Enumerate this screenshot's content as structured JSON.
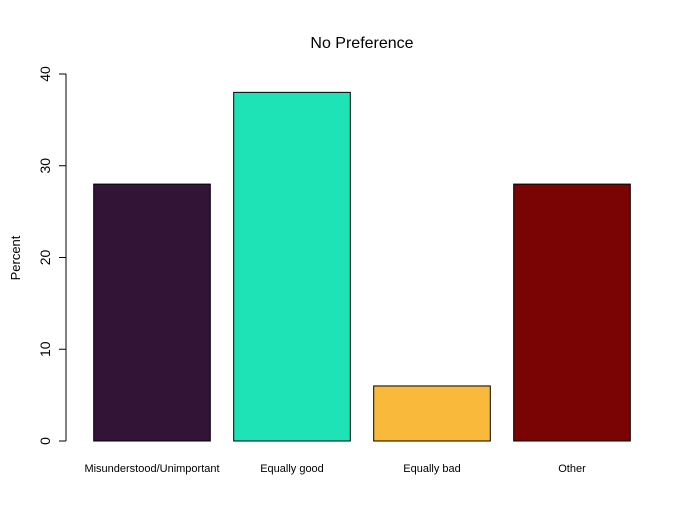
{
  "chart_data": {
    "type": "bar",
    "title": "No Preference",
    "xlabel": "",
    "ylabel": "Percent",
    "categories": [
      "Misunderstood/Unimportant",
      "Equally good",
      "Equally bad",
      "Other"
    ],
    "values": [
      28,
      38,
      6,
      28
    ],
    "colors": [
      "#311436",
      "#1ee3b6",
      "#f9b93a",
      "#7a0403"
    ],
    "ylim": [
      0,
      40
    ],
    "yticks": [
      "0",
      "10",
      "20",
      "30",
      "40"
    ],
    "grid": false
  }
}
